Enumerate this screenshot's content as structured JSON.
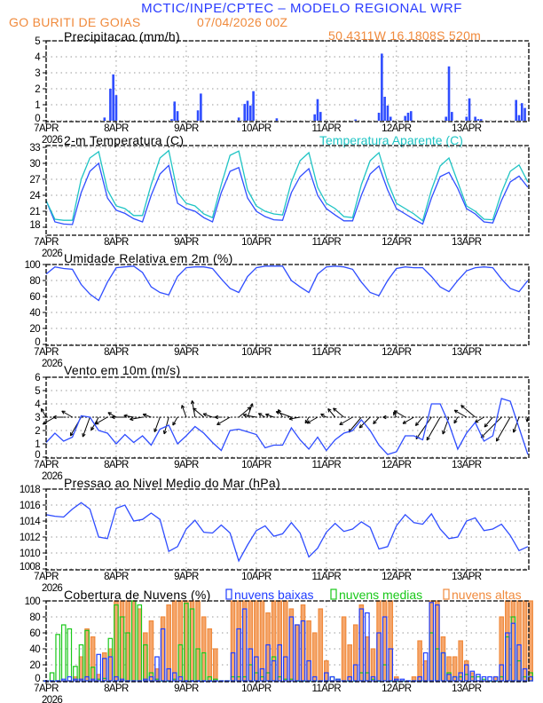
{
  "header": {
    "title": "MCTIC/INPE/CPTEC – MODELO REGIONAL WRF",
    "location": "GO BURITI DE GOIAS",
    "run": "07/04/2026 00Z",
    "coords": "50.4311W 16.1808S 520m"
  },
  "colors": {
    "title": "#2a3cff",
    "subtitle": "#f08a3c",
    "line": "#2f4dff",
    "apparent": "#1fc4c4",
    "low": "#1f3cff",
    "mid": "#19c819",
    "high": "#f08a3c"
  },
  "x_axis": {
    "ticks": [
      "7APR",
      "8APR",
      "9APR",
      "10APR",
      "11APR",
      "12APR",
      "13APR"
    ],
    "year": "2026"
  },
  "chart_data": [
    {
      "key": "precip",
      "type": "bar",
      "title": "Precipitacao (mm/h)",
      "ylim": [
        0,
        5
      ],
      "yticks": [
        "0",
        "1",
        "2",
        "3",
        "4",
        "5"
      ],
      "grid": true,
      "bars": [
        [
          "07APR 20Z",
          0.2
        ],
        [
          "07APR 22Z",
          2.0
        ],
        [
          "07APR 23Z",
          2.9
        ],
        [
          "08APR 00Z",
          1.6
        ],
        [
          "08APR 19Z",
          0.1
        ],
        [
          "08APR 20Z",
          1.2
        ],
        [
          "08APR 21Z",
          0.6
        ],
        [
          "09APR 04Z",
          0.65
        ],
        [
          "09APR 05Z",
          1.7
        ],
        [
          "09APR 18Z",
          0.2
        ],
        [
          "09APR 20Z",
          1.05
        ],
        [
          "09APR 21Z",
          1.25
        ],
        [
          "09APR 22Z",
          0.95
        ],
        [
          "09APR 23Z",
          1.85
        ],
        [
          "10APR 07Z",
          0.15
        ],
        [
          "10APR 20Z",
          0.4
        ],
        [
          "10APR 21Z",
          1.35
        ],
        [
          "10APR 22Z",
          0.55
        ],
        [
          "11APR 10Z",
          0.08
        ],
        [
          "11APR 18Z",
          0.5
        ],
        [
          "11APR 19Z",
          4.2
        ],
        [
          "11APR 20Z",
          1.5
        ],
        [
          "11APR 21Z",
          0.95
        ],
        [
          "11APR 22Z",
          0.25
        ],
        [
          "12APR 03Z",
          0.3
        ],
        [
          "12APR 04Z",
          0.5
        ],
        [
          "12APR 05Z",
          0.6
        ],
        [
          "12APR 17Z",
          0.25
        ],
        [
          "12APR 18Z",
          3.4
        ],
        [
          "12APR 19Z",
          0.55
        ],
        [
          "13APR 00Z",
          0.25
        ],
        [
          "13APR 01Z",
          1.4
        ],
        [
          "13APR 03Z",
          0.25
        ],
        [
          "13APR 04Z",
          0.1
        ],
        [
          "13APR 05Z",
          0.1
        ],
        [
          "13APR 17Z",
          1.3
        ],
        [
          "13APR 18Z",
          0.35
        ],
        [
          "13APR 19Z",
          1.1
        ],
        [
          "13APR 20Z",
          0.8
        ]
      ]
    },
    {
      "key": "temp",
      "type": "line",
      "title": "2-m Temperatura (C)",
      "ylim": [
        16.5,
        34
      ],
      "yticks": [
        "18",
        "21",
        "24",
        "27",
        "30",
        "33"
      ],
      "grid": true,
      "time": {
        "start": "07APR 00Z",
        "step_hours": 3
      },
      "series": [
        {
          "name": "2-m Temperatura (C)",
          "values": [
            23,
            19,
            18.6,
            18.5,
            24.5,
            28.5,
            30,
            23.5,
            21.2,
            20.6,
            19.6,
            19,
            24,
            28,
            29.6,
            22.5,
            21.5,
            21,
            19.8,
            19,
            24.5,
            28.5,
            29.2,
            23.5,
            21,
            20,
            19.4,
            19.3,
            24.5,
            27.5,
            29,
            24,
            21.5,
            20.3,
            19.2,
            19.2,
            24,
            28,
            29.5,
            25,
            21.5,
            20.5,
            19.5,
            18.6,
            23.5,
            27.5,
            28.3,
            25.3,
            21.5,
            20.5,
            19,
            18.8,
            23,
            26.5,
            27.6,
            25.5
          ]
        },
        {
          "name": "Temperatura Aparente (C)",
          "values": [
            23,
            19.5,
            19.3,
            19.3,
            27,
            31,
            32.2,
            25,
            22,
            21.5,
            20.2,
            20.2,
            26,
            31,
            32.4,
            24.5,
            22.5,
            22,
            20.5,
            19.8,
            26,
            31.5,
            32.3,
            25,
            22,
            21,
            20.5,
            20.3,
            26.5,
            30.5,
            32,
            25.5,
            22.5,
            21.5,
            20,
            19.8,
            26,
            30.5,
            32,
            26.5,
            22.5,
            21.5,
            20.5,
            19.2,
            25,
            29.5,
            31,
            26.5,
            22,
            21,
            19.5,
            19.4,
            24.5,
            28.5,
            29.7,
            26.5
          ]
        }
      ]
    },
    {
      "key": "rh",
      "type": "line",
      "title": "Umidade Relativa em 2m (%)",
      "ylim": [
        0,
        100
      ],
      "yticks": [
        "0",
        "20",
        "40",
        "60",
        "80",
        "100"
      ],
      "grid": true,
      "time": {
        "start": "07APR 00Z",
        "step_hours": 3
      },
      "series": [
        {
          "values": [
            88,
            97,
            95,
            94,
            75,
            63,
            55,
            78,
            96,
            97,
            98,
            90,
            72,
            65,
            62,
            85,
            96,
            97,
            97,
            95,
            82,
            70,
            65,
            85,
            96,
            98,
            98,
            98,
            80,
            72,
            65,
            88,
            97,
            98,
            97,
            94,
            78,
            65,
            61,
            80,
            95,
            97,
            96,
            96,
            85,
            72,
            66,
            80,
            92,
            96,
            97,
            96,
            82,
            70,
            66,
            80
          ]
        }
      ]
    },
    {
      "key": "wind",
      "type": "line",
      "title": "Vento em 10m (m/s)",
      "ylim": [
        0,
        6
      ],
      "yticks": [
        "0",
        "1",
        "2",
        "3",
        "4",
        "5",
        "6"
      ],
      "grid": true,
      "time": {
        "start": "07APR 00Z",
        "step_hours": 3
      },
      "series": [
        {
          "values": [
            1.1,
            1.8,
            1.2,
            1.5,
            3.1,
            3.0,
            2.0,
            1.8,
            1.0,
            1.7,
            1.1,
            1.6,
            0.9,
            2.1,
            2.4,
            1.0,
            1.6,
            2.3,
            1.8,
            1.1,
            0.5,
            2.0,
            2.1,
            1.9,
            1.7,
            0.7,
            0.9,
            0.9,
            2.2,
            1.3,
            0.6,
            1.5,
            0.5,
            1.3,
            1.8,
            2.0,
            2.8,
            2.0,
            0.9,
            0.2,
            0.4,
            1.6,
            1.6,
            1.3,
            4.0,
            4.0,
            2.5,
            0.6,
            1.8,
            2.6,
            1.2,
            1.6,
            4.4,
            4.2,
            2.2,
            0.2
          ]
        }
      ],
      "direction_from_deg": [
        150,
        60,
        90,
        120,
        30,
        20,
        30,
        60,
        120,
        90,
        100,
        80,
        110,
        20,
        15,
        30,
        160,
        170,
        130,
        110,
        90,
        60,
        230,
        200,
        100,
        120,
        110,
        150,
        110,
        80,
        30,
        60,
        120,
        140,
        130,
        60,
        40,
        45,
        40,
        90,
        150,
        120,
        60,
        40,
        35,
        30,
        20,
        30,
        120,
        130,
        60,
        40,
        45,
        30,
        20,
        10
      ]
    },
    {
      "key": "pressure",
      "type": "line",
      "title": "Pressao ao Nivel Medio do Mar (hPa)",
      "ylim": [
        1008,
        1018
      ],
      "yticks": [
        "1008",
        "1010",
        "1012",
        "1014",
        "1016",
        "1018"
      ],
      "grid": true,
      "time": {
        "start": "07APR 00Z",
        "step_hours": 3
      },
      "series": [
        {
          "values": [
            1014.8,
            1014.6,
            1014.5,
            1015.5,
            1016.3,
            1015.5,
            1012,
            1011.8,
            1015.6,
            1016,
            1014,
            1014.2,
            1015,
            1014.2,
            1010.2,
            1010.8,
            1013,
            1014.1,
            1012.6,
            1012.5,
            1013.5,
            1012.5,
            1009,
            1011,
            1012.8,
            1013.4,
            1012.1,
            1012.4,
            1013.8,
            1012.5,
            1009.5,
            1010.6,
            1012.6,
            1013.7,
            1012.7,
            1013,
            1013.9,
            1013.2,
            1010.5,
            1010.8,
            1013.4,
            1014.8,
            1013.8,
            1013.6,
            1014.9,
            1013,
            1011.8,
            1012,
            1014,
            1014.4,
            1012.8,
            1013,
            1013.6,
            1012.2,
            1010.3,
            1010.8
          ]
        }
      ]
    },
    {
      "key": "clouds",
      "type": "bar",
      "title": "Cobertura de Nuvens (%)",
      "ylim": [
        0,
        100
      ],
      "yticks": [
        "0",
        "20",
        "40",
        "60",
        "80",
        "100"
      ],
      "grid": true,
      "legend": "top",
      "time": {
        "start": "07APR 00Z",
        "step_hours": 2
      },
      "series": [
        {
          "name": "nuvens altas",
          "values": [
            0,
            0,
            0,
            0,
            0,
            5,
            30,
            65,
            55,
            8,
            35,
            40,
            100,
            100,
            100,
            100,
            90,
            60,
            75,
            15,
            80,
            95,
            100,
            100,
            100,
            100,
            100,
            80,
            65,
            40,
            0,
            0,
            100,
            100,
            100,
            100,
            100,
            100,
            85,
            100,
            100,
            100,
            90,
            70,
            95,
            75,
            60,
            90,
            25,
            0,
            0,
            80,
            45,
            70,
            95,
            55,
            40,
            100,
            100,
            100,
            5,
            0,
            0,
            5,
            50,
            25,
            100,
            100,
            55,
            30,
            30,
            50,
            25,
            10,
            0,
            0,
            0,
            5,
            80,
            100,
            100,
            100,
            100,
            100
          ]
        },
        {
          "name": "nuvens medias",
          "values": [
            0,
            10,
            58,
            70,
            65,
            18,
            45,
            63,
            17,
            2,
            3,
            53,
            95,
            80,
            60,
            100,
            95,
            45,
            10,
            2,
            0,
            0,
            2,
            45,
            97,
            90,
            40,
            35,
            5,
            2,
            0,
            0,
            5,
            5,
            5,
            20,
            10,
            5,
            10,
            30,
            5,
            2,
            2,
            0,
            0,
            0,
            0,
            0,
            0,
            5,
            2,
            0,
            0,
            0,
            10,
            10,
            2,
            0,
            20,
            0,
            0,
            0,
            0,
            0,
            0,
            0,
            60,
            40,
            35,
            10,
            5,
            5,
            8,
            5,
            5,
            2,
            0,
            0,
            5,
            55,
            80,
            25,
            5,
            10
          ]
        },
        {
          "name": "nuvens baixas",
          "values": [
            0,
            0,
            0,
            2,
            5,
            2,
            2,
            5,
            2,
            33,
            28,
            30,
            5,
            2,
            0,
            0,
            0,
            2,
            5,
            30,
            65,
            15,
            10,
            5,
            0,
            0,
            0,
            0,
            0,
            0,
            0,
            0,
            35,
            65,
            90,
            40,
            30,
            15,
            45,
            25,
            45,
            30,
            80,
            70,
            75,
            25,
            5,
            0,
            10,
            5,
            2,
            0,
            5,
            20,
            90,
            85,
            5,
            60,
            80,
            40,
            2,
            2,
            0,
            0,
            5,
            35,
            98,
            95,
            35,
            8,
            5,
            10,
            20,
            12,
            8,
            5,
            5,
            5,
            20,
            60,
            72,
            45,
            15,
            5
          ]
        }
      ]
    }
  ]
}
